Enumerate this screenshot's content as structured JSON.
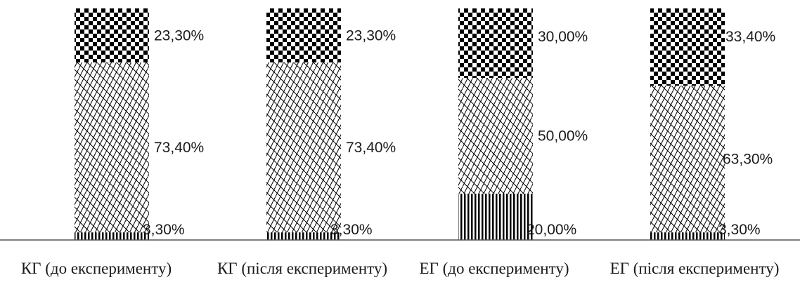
{
  "chart_data": {
    "type": "bar",
    "stacked": true,
    "percent": true,
    "categories": [
      "КГ (до експерименту)",
      "КГ (після експерименту)",
      "ЕГ (до експерименту)",
      "ЕГ (після експерименту)"
    ],
    "series": [
      {
        "values": [
          3.3,
          3.3,
          20.0,
          3.3
        ],
        "labels": [
          "3,30%",
          "3,30%",
          "20,00%",
          "3,30%"
        ],
        "pattern": "vertical-stripes"
      },
      {
        "values": [
          73.4,
          73.4,
          50.0,
          63.3
        ],
        "labels": [
          "73,40%",
          "73,40%",
          "50,00%",
          "63,30%"
        ],
        "pattern": "diagonal-weave"
      },
      {
        "values": [
          23.3,
          23.3,
          30.0,
          33.4
        ],
        "labels": [
          "23,30%",
          "23,30%",
          "30,00%",
          "33,40%"
        ],
        "pattern": "checkerboard"
      }
    ],
    "ylim": [
      0,
      100
    ],
    "grid": false,
    "legend": "none",
    "title": "",
    "xlabel": "",
    "ylabel": ""
  }
}
